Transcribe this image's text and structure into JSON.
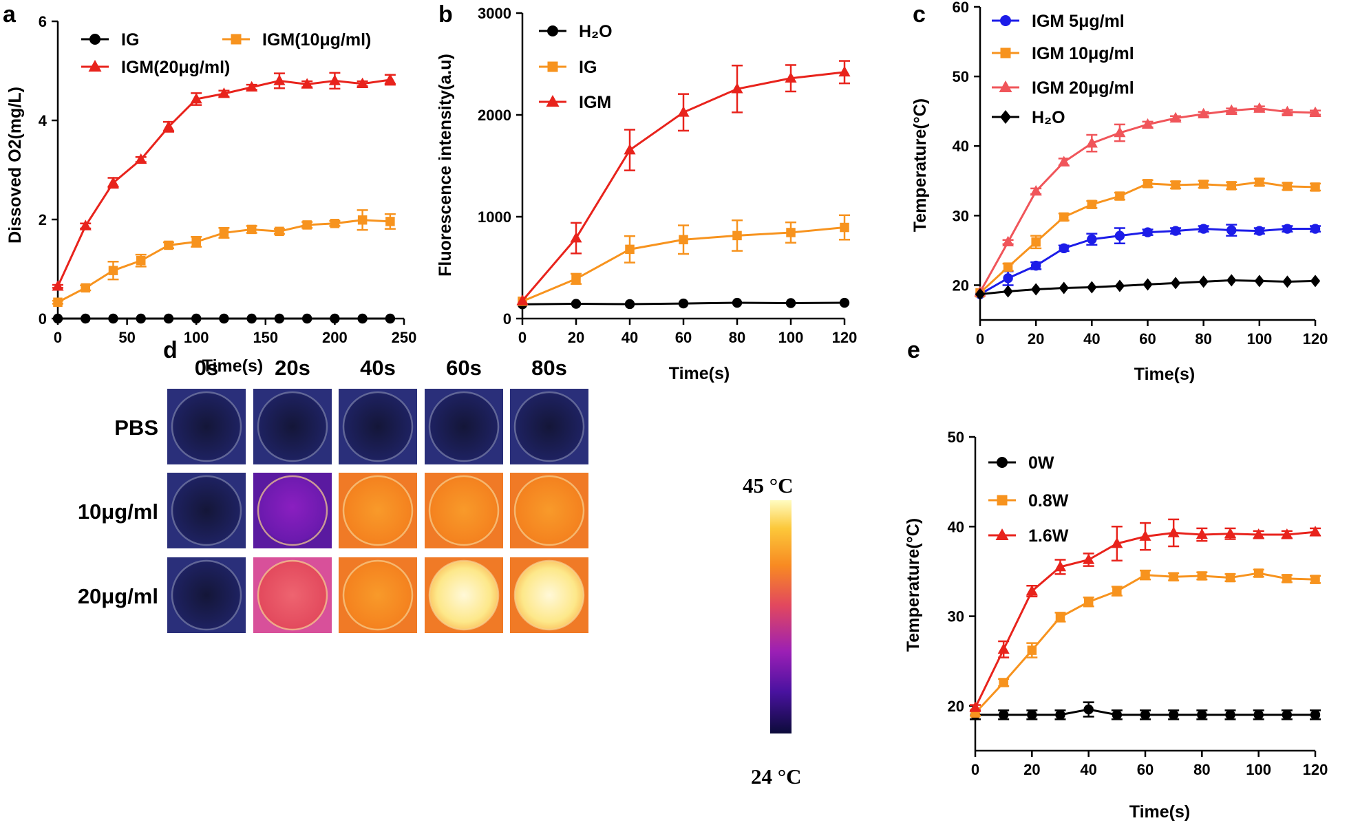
{
  "chart_data": [
    {
      "panel": "a",
      "type": "line",
      "title": "",
      "xlabel": "Time(s)",
      "ylabel": "Dissoved O2(mg/L)",
      "xlim": [
        0,
        250
      ],
      "ylim": [
        0,
        6
      ],
      "xticks": [
        0,
        50,
        100,
        150,
        200,
        250
      ],
      "yticks": [
        0,
        2,
        4,
        6
      ],
      "legend_layout": "two-column",
      "series": [
        {
          "name": "IG",
          "color": "#000000",
          "marker": "circle",
          "x": [
            0,
            20,
            40,
            60,
            80,
            100,
            120,
            140,
            160,
            180,
            200,
            220,
            240
          ],
          "y": [
            0,
            0,
            0,
            0,
            0,
            0,
            0,
            0,
            0,
            0,
            0,
            0,
            0
          ],
          "err": [
            0,
            0,
            0,
            0,
            0,
            0,
            0,
            0,
            0,
            0,
            0,
            0,
            0
          ]
        },
        {
          "name": "IGM(10μg/ml)",
          "color": "#f7931e",
          "marker": "square",
          "x": [
            0,
            20,
            40,
            60,
            80,
            100,
            120,
            140,
            160,
            180,
            200,
            220,
            240
          ],
          "y": [
            0.33,
            0.62,
            0.97,
            1.17,
            1.48,
            1.55,
            1.73,
            1.8,
            1.76,
            1.89,
            1.92,
            1.99,
            1.96
          ],
          "err": [
            0.03,
            0.05,
            0.18,
            0.12,
            0.06,
            0.1,
            0.1,
            0.07,
            0.05,
            0.06,
            0.05,
            0.2,
            0.15
          ]
        },
        {
          "name": "IGM(20μg/ml)",
          "color": "#e8231c",
          "marker": "triangle",
          "x": [
            0,
            20,
            40,
            60,
            80,
            100,
            120,
            140,
            160,
            180,
            200,
            220,
            240
          ],
          "y": [
            0.65,
            1.87,
            2.74,
            3.21,
            3.87,
            4.43,
            4.54,
            4.67,
            4.8,
            4.73,
            4.8,
            4.74,
            4.82
          ],
          "err": [
            0.03,
            0.05,
            0.1,
            0.05,
            0.1,
            0.12,
            0.06,
            0.05,
            0.15,
            0.06,
            0.16,
            0.05,
            0.1
          ]
        }
      ]
    },
    {
      "panel": "b",
      "type": "line",
      "title": "",
      "xlabel": "Time(s)",
      "ylabel": "Fluorescence intensity(a.u)",
      "xlim": [
        0,
        120
      ],
      "ylim": [
        0,
        3000
      ],
      "xticks": [
        0,
        20,
        40,
        60,
        80,
        100,
        120
      ],
      "yticks": [
        0,
        1000,
        2000,
        3000
      ],
      "legend_layout": "one-column",
      "series": [
        {
          "name": "H₂O",
          "color": "#000000",
          "marker": "circle",
          "x": [
            0,
            20,
            40,
            60,
            80,
            100,
            120
          ],
          "y": [
            140,
            145,
            142,
            148,
            155,
            152,
            155
          ],
          "err": [
            0,
            0,
            0,
            0,
            0,
            0,
            0
          ]
        },
        {
          "name": "IG",
          "color": "#f7931e",
          "marker": "square",
          "x": [
            0,
            20,
            40,
            60,
            80,
            100,
            120
          ],
          "y": [
            170,
            390,
            680,
            775,
            815,
            845,
            895
          ],
          "err": [
            0,
            50,
            130,
            140,
            150,
            100,
            120
          ]
        },
        {
          "name": "IGM",
          "color": "#e8231c",
          "marker": "triangle",
          "x": [
            0,
            20,
            40,
            60,
            80,
            100,
            120
          ],
          "y": [
            175,
            790,
            1655,
            2025,
            2255,
            2360,
            2420
          ],
          "err": [
            0,
            150,
            200,
            180,
            230,
            130,
            110
          ]
        }
      ]
    },
    {
      "panel": "c",
      "type": "line",
      "title": "",
      "xlabel": "Time(s)",
      "ylabel": "Temperature(°C)",
      "xlim": [
        0,
        120
      ],
      "ylim": [
        15,
        60
      ],
      "xticks": [
        0,
        20,
        40,
        60,
        80,
        100,
        120
      ],
      "yticks": [
        20,
        30,
        40,
        50,
        60
      ],
      "legend_layout": "one-column",
      "series": [
        {
          "name": "IGM 5μg/ml",
          "color": "#1c1ce8",
          "marker": "circle",
          "x": [
            0,
            10,
            20,
            30,
            40,
            50,
            60,
            70,
            80,
            90,
            100,
            110,
            120
          ],
          "y": [
            18.7,
            21.0,
            22.8,
            25.3,
            26.6,
            27.1,
            27.6,
            27.8,
            28.1,
            27.9,
            27.8,
            28.1,
            28.1
          ],
          "err": [
            0,
            1.0,
            0.5,
            0.4,
            0.8,
            1.1,
            0.4,
            0.4,
            0.4,
            0.8,
            0.4,
            0.4,
            0.4
          ]
        },
        {
          "name": "IGM 10μg/ml",
          "color": "#f7931e",
          "marker": "square",
          "x": [
            0,
            10,
            20,
            30,
            40,
            50,
            60,
            70,
            80,
            90,
            100,
            110,
            120
          ],
          "y": [
            18.9,
            22.6,
            26.2,
            29.8,
            31.6,
            32.8,
            34.6,
            34.4,
            34.5,
            34.3,
            34.8,
            34.2,
            34.1
          ],
          "err": [
            0,
            0.5,
            0.9,
            0.5,
            0.5,
            0.5,
            0.5,
            0.5,
            0.5,
            0.5,
            0.5,
            0.5,
            0.5
          ]
        },
        {
          "name": "IGM 20μg/ml",
          "color": "#f0555a",
          "marker": "triangle",
          "x": [
            0,
            10,
            20,
            30,
            40,
            50,
            60,
            70,
            80,
            90,
            100,
            110,
            120
          ],
          "y": [
            19.0,
            26.2,
            33.5,
            37.7,
            40.4,
            41.9,
            43.1,
            44.0,
            44.6,
            45.1,
            45.4,
            44.9,
            44.8
          ],
          "err": [
            0,
            0.3,
            0.4,
            0.5,
            1.2,
            1.2,
            0.4,
            0.3,
            0.3,
            0.3,
            0.3,
            0.3,
            0.3
          ]
        },
        {
          "name": "H₂O",
          "color": "#000000",
          "marker": "diamond",
          "x": [
            0,
            10,
            20,
            30,
            40,
            50,
            60,
            70,
            80,
            90,
            100,
            110,
            120
          ],
          "y": [
            18.7,
            19.1,
            19.4,
            19.6,
            19.7,
            19.9,
            20.1,
            20.3,
            20.5,
            20.7,
            20.6,
            20.5,
            20.6
          ],
          "err": [
            0,
            0,
            0,
            0,
            0,
            0,
            0,
            0,
            0,
            0,
            0,
            0,
            0
          ]
        }
      ]
    },
    {
      "panel": "e",
      "type": "line",
      "title": "",
      "xlabel": "Time(s)",
      "ylabel": "Temperature(°C)",
      "xlim": [
        0,
        120
      ],
      "ylim": [
        15,
        50
      ],
      "xticks": [
        0,
        20,
        40,
        60,
        80,
        100,
        120
      ],
      "yticks": [
        20,
        30,
        40,
        50
      ],
      "legend_layout": "one-column",
      "series": [
        {
          "name": "0W",
          "color": "#000000",
          "marker": "circle",
          "x": [
            0,
            10,
            20,
            30,
            40,
            50,
            60,
            70,
            80,
            90,
            100,
            110,
            120
          ],
          "y": [
            19.0,
            19.0,
            19.0,
            19.0,
            19.6,
            19.0,
            19.0,
            19.0,
            19.0,
            19.0,
            19.0,
            19.0,
            19.0
          ],
          "err": [
            0.5,
            0.5,
            0.5,
            0.5,
            0.8,
            0.5,
            0.5,
            0.5,
            0.5,
            0.5,
            0.5,
            0.5,
            0.5
          ]
        },
        {
          "name": "0.8W",
          "color": "#f7931e",
          "marker": "square",
          "x": [
            0,
            10,
            20,
            30,
            40,
            50,
            60,
            70,
            80,
            90,
            100,
            110,
            120
          ],
          "y": [
            19.2,
            22.6,
            26.2,
            29.9,
            31.6,
            32.8,
            34.6,
            34.4,
            34.5,
            34.3,
            34.8,
            34.2,
            34.1
          ],
          "err": [
            0.3,
            0.4,
            0.8,
            0.5,
            0.5,
            0.5,
            0.5,
            0.4,
            0.4,
            0.4,
            0.4,
            0.4,
            0.4
          ]
        },
        {
          "name": "1.6W",
          "color": "#e8231c",
          "marker": "triangle",
          "x": [
            0,
            10,
            20,
            30,
            40,
            50,
            60,
            70,
            80,
            90,
            100,
            110,
            120
          ],
          "y": [
            19.8,
            26.3,
            32.8,
            35.5,
            36.3,
            38.1,
            38.9,
            39.3,
            39.1,
            39.2,
            39.1,
            39.1,
            39.4
          ],
          "err": [
            0.3,
            0.9,
            0.6,
            0.8,
            0.7,
            1.9,
            1.5,
            1.5,
            0.7,
            0.6,
            0.4,
            0.4,
            0.4
          ]
        }
      ]
    }
  ],
  "panels": {
    "a": {
      "letter": "a"
    },
    "b": {
      "letter": "b"
    },
    "c": {
      "letter": "c"
    },
    "d": {
      "letter": "d"
    },
    "e": {
      "letter": "e"
    }
  },
  "thermal": {
    "columns": [
      "0s",
      "20s",
      "40s",
      "60s",
      "80s"
    ],
    "rows": [
      "PBS",
      "10μg/ml",
      "20μg/ml"
    ],
    "cells": [
      [
        "cold",
        "cold",
        "cold",
        "cold",
        "cold"
      ],
      [
        "cold",
        "purple",
        "orange",
        "orange",
        "orange"
      ],
      [
        "cold",
        "pink",
        "orange",
        "hot",
        "hot"
      ]
    ],
    "colorbar": {
      "max_label": "45 °C",
      "min_label": "24 °C",
      "max": 45,
      "min": 24
    },
    "colors": {
      "cold": "#171a4a",
      "purple": "#7a1fb8",
      "pink": "#e85a68",
      "orange": "#f48a22",
      "hot": "#fbe89a"
    }
  }
}
